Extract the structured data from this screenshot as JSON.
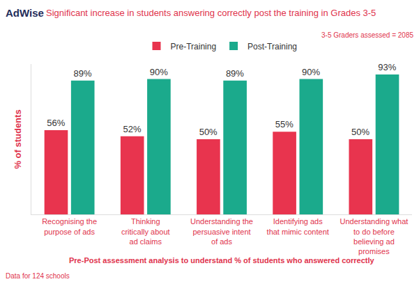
{
  "chart_data": {
    "type": "bar",
    "logo": "AdWise",
    "title": "Significant increase in students answering correctly post the training in Grades 3-5",
    "categories": [
      "Recognising the purpose of ads",
      "Thinking critically about ad claims",
      "Understanding the persuasive intent of ads",
      "Identifying ads that mimic content",
      "Understanding what to do before believing ad promises"
    ],
    "series": [
      {
        "name": "Pre-Training",
        "color": "#E8344E",
        "values": [
          56,
          52,
          50,
          55,
          50
        ],
        "value_labels": [
          "56%",
          "52%",
          "50%",
          "55%",
          "50%"
        ]
      },
      {
        "name": "Post-Training",
        "color": "#1BAA8C",
        "values": [
          89,
          90,
          89,
          90,
          93
        ],
        "value_labels": [
          "89%",
          "90%",
          "89%",
          "90%",
          "93%"
        ]
      }
    ],
    "y_label": "% of students",
    "x_label": "Pre-Post assessment analysis to understand % of students who answered correctly",
    "annotations": [
      "3-5 Graders assessed = 2085",
      "Data for 124 schools"
    ],
    "ylim": [
      0,
      100
    ],
    "grid": false,
    "legend": "top",
    "data_labels": true,
    "tick_labels": "x"
  }
}
